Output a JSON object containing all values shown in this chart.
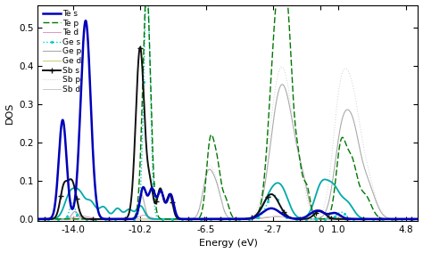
{
  "xlabel": "Energy (eV)",
  "ylabel": "DOS",
  "xlim": [
    -16.0,
    5.5
  ],
  "ylim": [
    -0.005,
    0.56
  ],
  "xticks": [
    -14.0,
    -10.2,
    -6.5,
    -2.7,
    0,
    1.0,
    4.8
  ],
  "yticks": [
    0,
    0.1,
    0.2,
    0.3,
    0.4,
    0.5
  ],
  "bg_color": "#f0f0f0",
  "colors": {
    "Te_s": "#0000cc",
    "Te_p": "#007700",
    "Te_d": "#dd99aa",
    "Ge_s": "#00bbbb",
    "Ge_p": "#aaaaaa",
    "Ge_d": "#cccc88",
    "Sb_s": "#111111",
    "Sb_p": "#bbbbbb",
    "Sb_d": "#999999"
  }
}
